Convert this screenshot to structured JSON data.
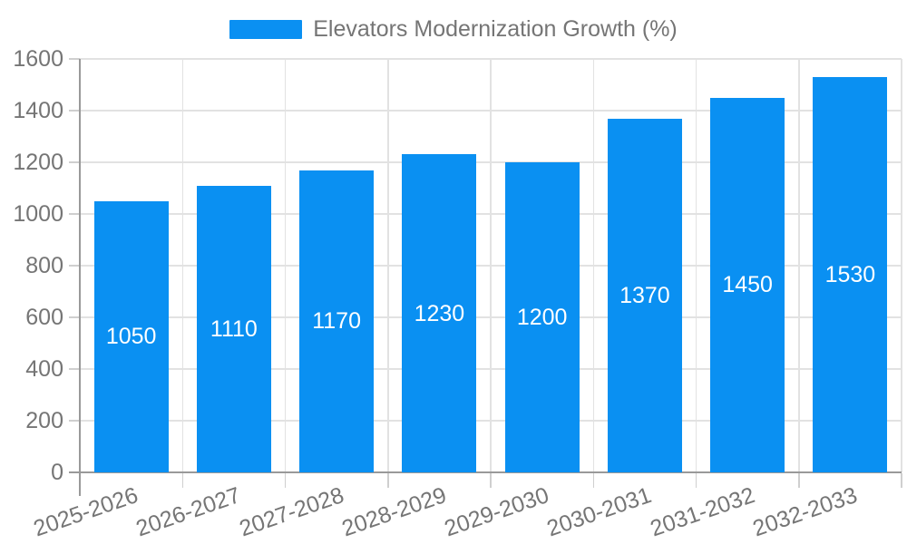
{
  "legend": {
    "label": "Elevators Modernization Growth (%)"
  },
  "chart_data": {
    "type": "bar",
    "title": "",
    "series_name": "Elevators Modernization Growth (%)",
    "categories": [
      "2025-2026",
      "2026-2027",
      "2027-2028",
      "2028-2029",
      "2029-2030",
      "2030-2031",
      "2031-2032",
      "2032-2033"
    ],
    "values": [
      1050,
      1110,
      1170,
      1230,
      1200,
      1370,
      1450,
      1530
    ],
    "value_labels": [
      "1050",
      "1110",
      "1170",
      "1230",
      "1200",
      "1370",
      "1450",
      "1530"
    ],
    "xlabel": "",
    "ylabel": "",
    "ylim": [
      0,
      1600
    ],
    "ytick_step": 200,
    "ytick_labels": [
      "0",
      "200",
      "400",
      "600",
      "800",
      "1000",
      "1200",
      "1400",
      "1600"
    ],
    "grid": true,
    "legend_position": "top",
    "colors": {
      "bar": "#0a90f2",
      "value_label": "#ffffff",
      "axis_text": "#757575",
      "axis_line": "#999999",
      "gridline": "#e2e2e2",
      "tick": "#cfcfcf"
    }
  }
}
